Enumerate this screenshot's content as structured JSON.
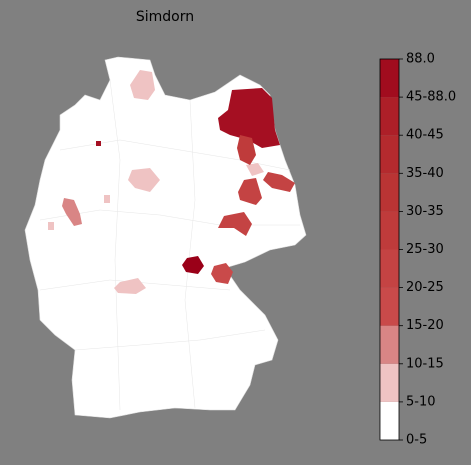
{
  "title": "Simdorn",
  "legend": {
    "ticks": [
      "0-5",
      "5-10",
      "10-15",
      "15-20",
      "20-25",
      "25-30",
      "30-35",
      "35-40",
      "40-45",
      "45-88.0",
      "88.0"
    ],
    "colors": [
      "#ffffff",
      "#efc3c3",
      "#d98585",
      "#c94a4a",
      "#c44343",
      "#bf3b3b",
      "#ba3434",
      "#b42a2e",
      "#ad1f28",
      "#a10c1e"
    ]
  }
}
